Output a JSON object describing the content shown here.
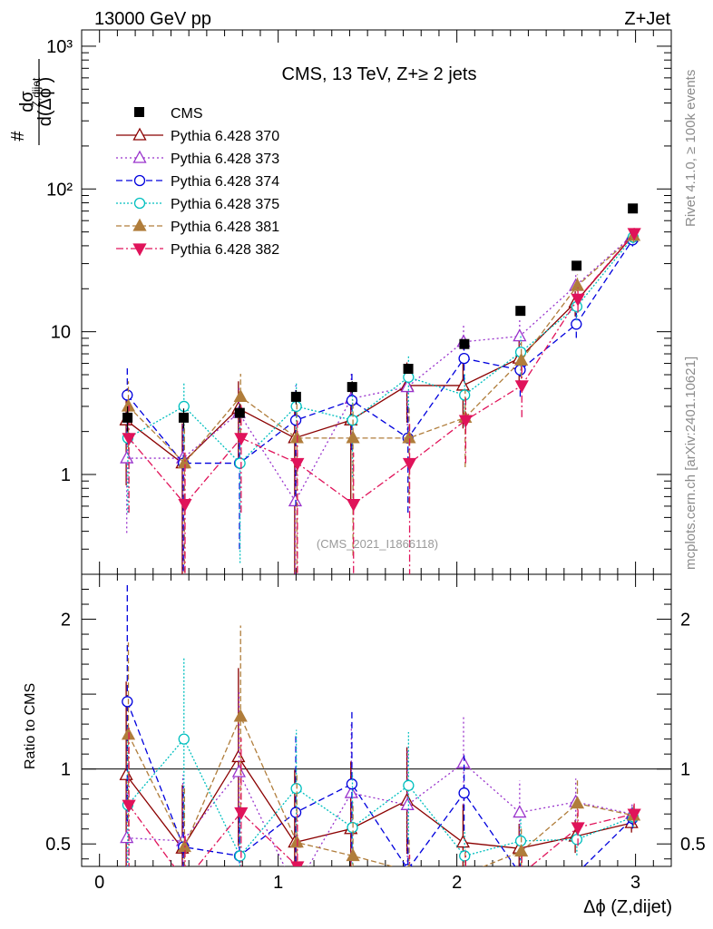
{
  "header": {
    "left": "13000 GeV pp",
    "right": "Z+Jet",
    "plot_title": "CMS, 13 TeV, Z+≥ 2 jets",
    "analysis_tag": "(CMS_2021_I1866118)",
    "side_top": "Rivet 4.1.0, ≥ 100k events",
    "side_bottom": "mcplots.cern.ch [arXiv:2401.10621]"
  },
  "chart_data": {
    "type": "line",
    "title": "CMS, 13 TeV, Z+≥ 2 jets",
    "xlabel": "Δϕ (Z,dijet)",
    "ylabel": "#  dσ / d(Δϕ Z,dijet)",
    "ratio_ylabel": "Ratio to CMS",
    "xlim": [
      -0.1,
      3.2
    ],
    "ylim": [
      0.2,
      1300
    ],
    "ylog": true,
    "ratio_ylim": [
      0.35,
      2.3
    ],
    "x_ticks": [
      "0",
      "1",
      "2",
      "3"
    ],
    "y_ticks": [
      "1",
      "10",
      "10²",
      "10³"
    ],
    "ratio_ticks": [
      "0.5",
      "1",
      "2"
    ],
    "x": [
      0.157,
      0.471,
      0.785,
      1.1,
      1.414,
      1.728,
      2.042,
      2.356,
      2.67,
      2.985
    ],
    "data": {
      "name": "CMS",
      "color": "#000000",
      "values": [
        2.5,
        2.5,
        2.7,
        3.5,
        4.1,
        5.5,
        8.2,
        14,
        29,
        73
      ],
      "errors": [
        0.5,
        0.4,
        0.4,
        0.4,
        0.4,
        0.4,
        0.5,
        0.6,
        0.8,
        1.5
      ]
    },
    "series": [
      {
        "name": "Pythia 6.428 370",
        "color": "#8b0000",
        "dash": "",
        "marker": "tri-up-open",
        "values": [
          2.4,
          1.2,
          2.9,
          1.8,
          2.4,
          4.2,
          4.2,
          6.5,
          16,
          46
        ],
        "ratio": [
          0.96,
          0.47,
          1.08,
          0.51,
          0.6,
          0.79,
          0.51,
          0.47,
          0.55,
          0.64
        ],
        "rel_err": [
          0.65,
          0.9,
          0.55,
          0.95,
          0.75,
          0.45,
          0.5,
          0.35,
          0.2,
          0.1
        ]
      },
      {
        "name": "Pythia 6.428 373",
        "color": "#9932cc",
        "dash": "2,3",
        "marker": "tri-up-open",
        "values": [
          1.3,
          1.3,
          2.7,
          0.65,
          3.4,
          4.1,
          8.5,
          9.3,
          21,
          47
        ],
        "ratio": [
          0.54,
          0.52,
          0.98,
          0.2,
          0.84,
          0.76,
          1.04,
          0.71,
          0.78,
          0.7
        ],
        "rel_err": [
          0.7,
          0.85,
          0.55,
          1.0,
          0.55,
          0.5,
          0.3,
          0.3,
          0.2,
          0.1
        ]
      },
      {
        "name": "Pythia 6.428 374",
        "color": "#0000dd",
        "dash": "7,4",
        "marker": "circle-open",
        "values": [
          3.6,
          1.2,
          1.2,
          2.4,
          3.3,
          1.8,
          6.5,
          5.4,
          11.3,
          44
        ],
        "ratio": [
          1.45,
          0.48,
          0.42,
          0.71,
          0.9,
          0.33,
          0.84,
          0.3,
          0.3,
          0.67
        ],
        "rel_err": [
          0.55,
          0.85,
          0.75,
          0.75,
          0.55,
          0.7,
          0.3,
          0.35,
          0.2,
          0.1
        ]
      },
      {
        "name": "Pythia 6.428 375",
        "color": "#00bfbf",
        "dash": "2,2",
        "marker": "circle-open",
        "values": [
          1.8,
          3.0,
          1.2,
          3.0,
          2.4,
          4.8,
          3.6,
          7.2,
          15,
          46
        ],
        "ratio": [
          0.76,
          1.2,
          0.42,
          0.87,
          0.61,
          0.89,
          0.42,
          0.52,
          0.53,
          0.68
        ],
        "rel_err": [
          0.7,
          0.45,
          0.8,
          0.45,
          0.6,
          0.4,
          0.4,
          0.3,
          0.2,
          0.1
        ]
      },
      {
        "name": "Pythia 6.428 381",
        "color": "#b07d3b",
        "dash": "6,3",
        "marker": "tri-up-fill",
        "values": [
          3.0,
          1.2,
          3.5,
          1.8,
          1.8,
          1.8,
          2.5,
          6.3,
          21,
          47
        ],
        "ratio": [
          1.23,
          0.48,
          1.35,
          0.51,
          0.42,
          0.32,
          0.3,
          0.45,
          0.77,
          0.69
        ],
        "rel_err": [
          0.5,
          0.85,
          0.45,
          0.9,
          0.85,
          0.65,
          0.55,
          0.35,
          0.2,
          0.1
        ]
      },
      {
        "name": "Pythia 6.428 382",
        "color": "#e0135a",
        "dash": "8,3,2,3",
        "marker": "tri-down-fill",
        "values": [
          1.8,
          0.62,
          1.8,
          1.2,
          0.62,
          1.2,
          2.4,
          4.2,
          17,
          49
        ],
        "ratio": [
          0.76,
          0.25,
          0.71,
          0.35,
          0.15,
          0.22,
          0.3,
          0.3,
          0.61,
          0.7
        ],
        "rel_err": [
          0.7,
          1.3,
          0.7,
          1.0,
          1.3,
          0.95,
          0.5,
          0.4,
          0.2,
          0.1
        ]
      }
    ],
    "legend_position": "top-left"
  }
}
